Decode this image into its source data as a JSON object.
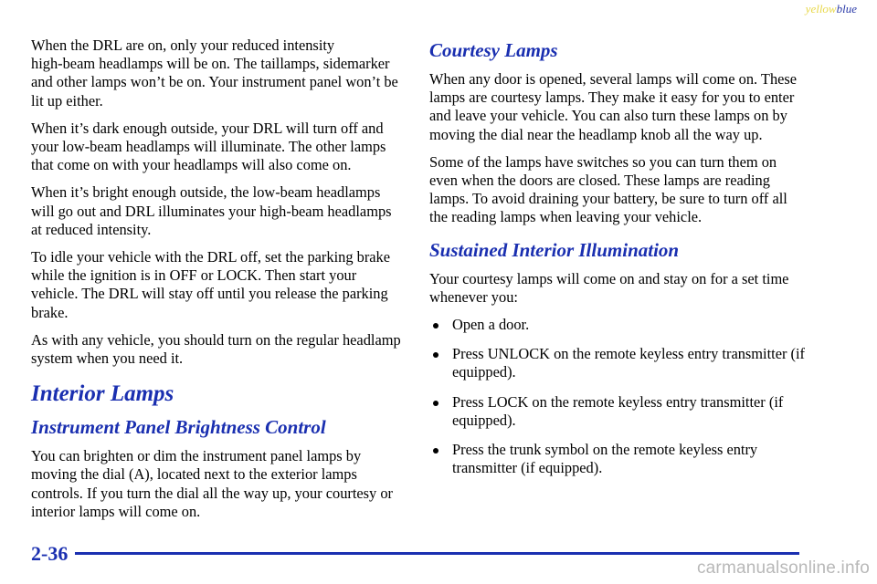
{
  "corner": {
    "word1": "yellow",
    "word2": "blue"
  },
  "left": {
    "p1": "When the DRL are on, only your reduced intensity high‑beam headlamps will be on. The taillamps, sidemarker and other lamps won’t be on. Your instrument panel won’t be lit up either.",
    "p2": "When it’s dark enough outside, your DRL will turn off and your low‑beam headlamps will illuminate. The other lamps that come on with your headlamps will also come on.",
    "p3": "When it’s bright enough outside, the low‑beam headlamps will go out and DRL illuminates your high‑beam headlamps at reduced intensity.",
    "p4": "To idle your vehicle with the DRL off, set the parking brake while the ignition is in OFF or LOCK. Then start your vehicle. The DRL will stay off until you release the parking brake.",
    "p5": "As with any vehicle, you should turn on the regular headlamp system when you need it.",
    "h1": "Interior Lamps",
    "h2": "Instrument Panel Brightness Control",
    "p6": "You can brighten or dim the instrument panel lamps by moving the dial (A), located next to the exterior lamps controls. If you turn the dial all the way up, your courtesy or interior lamps will come on."
  },
  "right": {
    "h2a": "Courtesy Lamps",
    "p1": "When any door is opened, several lamps will come on. These lamps are courtesy lamps. They make it easy for you to enter and leave your vehicle. You can also turn these lamps on by moving the dial near the headlamp knob all the way up.",
    "p2": "Some of the lamps have switches so you can turn them on even when the doors are closed. These lamps are reading lamps. To avoid draining your battery, be sure to turn off all the reading lamps when leaving your vehicle.",
    "h2b": "Sustained Interior Illumination",
    "p3": "Your courtesy lamps will come on and stay on for a set time whenever you:",
    "bullets": [
      "Open a door.",
      "Press UNLOCK on the remote keyless entry transmitter (if equipped).",
      "Press LOCK on the remote keyless entry transmitter (if equipped).",
      "Press the trunk symbol on the remote keyless entry transmitter (if equipped)."
    ]
  },
  "footer": {
    "page_number": "2-36"
  },
  "watermark": "carmanualsonline.info",
  "colors": {
    "heading": "#1a2fb0",
    "corner_yellow": "#e8d84a",
    "corner_blue": "#2a3aa8"
  }
}
